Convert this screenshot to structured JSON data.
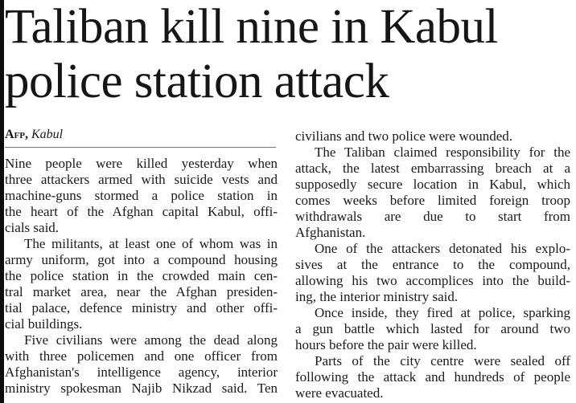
{
  "headline": [
    "Taliban kill nine in Kabul",
    "police station attack"
  ],
  "byline": {
    "agency": "Afp,",
    "place": "Kabul"
  },
  "columns": {
    "left": [
      [
        "Nine people were killed yesterday when",
        "three attackers armed with suicide vests and",
        "machine-guns stormed a police station in",
        "the heart of the Afghan capital Kabul, offi-",
        "cials said."
      ],
      [
        "The militants, at least one of whom was in",
        "army uniform, got into a compound housing",
        "the police station in the crowded main cen-",
        "tral market area, near the Afghan presiden-",
        "tial palace, defence ministry and other offi-",
        "cial buildings."
      ],
      [
        "Five civilians were among the dead along",
        "with three policemen and one officer from",
        "Afghanistan's intelligence agency, interior",
        "ministry spokesman Najib Nikzad said. Ten"
      ]
    ],
    "right": [
      [
        "civilians and two police were wounded."
      ],
      [
        "The Taliban claimed responsibility for the",
        "attack, the latest embarrassing breach at a",
        "supposedly secure location in Kabul, which",
        "comes weeks before limited foreign troop",
        "withdrawals are due to start from",
        "Afghanistan."
      ],
      [
        "One of the attackers detonated his explo-",
        "sives at the entrance to the compound,",
        "allowing his two accomplices into the build-",
        "ing, the interior ministry said."
      ],
      [
        "Once inside, they fired at police, sparking",
        "a gun battle which lasted for around two",
        "hours before the pair were killed."
      ],
      [
        "Parts of the city centre were sealed off",
        "following the attack and hundreds of people",
        "were evacuated."
      ]
    ]
  }
}
